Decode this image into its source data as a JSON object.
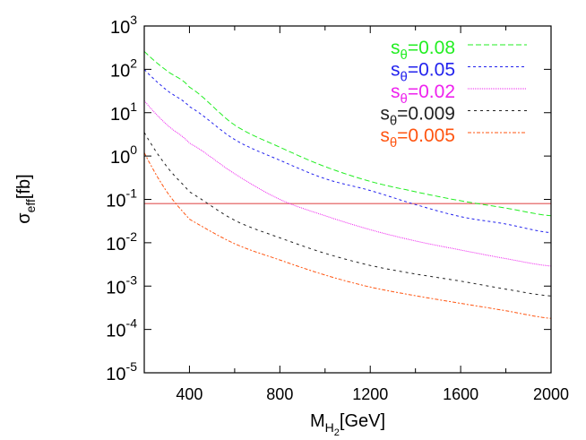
{
  "chart_data": {
    "type": "line",
    "xlabel": {
      "main": "M",
      "sub": "H",
      "subsub": "2",
      "unit": "[GeV]"
    },
    "ylabel": {
      "main": "σ",
      "sub": "eff",
      "unit": "[fb]"
    },
    "xlim": [
      200,
      2000
    ],
    "ylim": [
      1e-05,
      1000
    ],
    "yscale": "log",
    "grid": false,
    "legend_placement": "top-right",
    "x_ticks": [
      "400",
      "800",
      "1200",
      "1600",
      "2000"
    ],
    "x_tick_values": [
      400,
      800,
      1200,
      1600,
      2000
    ],
    "x_minor_ticks": [
      600,
      1000,
      1400,
      1800
    ],
    "y_ticks": [
      {
        "base": "10",
        "exp": "3",
        "value": 1000
      },
      {
        "base": "10",
        "exp": "2",
        "value": 100
      },
      {
        "base": "10",
        "exp": "1",
        "value": 10
      },
      {
        "base": "10",
        "exp": "0",
        "value": 1
      },
      {
        "base": "10",
        "exp": "-1",
        "value": 0.1
      },
      {
        "base": "10",
        "exp": "-2",
        "value": 0.01
      },
      {
        "base": "10",
        "exp": "-3",
        "value": 0.001
      },
      {
        "base": "10",
        "exp": "-4",
        "value": 0.0001
      },
      {
        "base": "10",
        "exp": "-5",
        "value": 1e-05
      }
    ],
    "x": [
      200,
      300,
      400,
      600,
      800,
      1000,
      1200,
      1400,
      1600,
      1800,
      2000
    ],
    "series": [
      {
        "name": "sθ=0.08",
        "label_base": "s",
        "label_sub": "θ",
        "label_rest": "=0.08",
        "color": "#22ee22",
        "dash": "6,3",
        "values": [
          260,
          93,
          39,
          5.2,
          1.6,
          0.57,
          0.26,
          0.15,
          0.093,
          0.063,
          0.042
        ]
      },
      {
        "name": "sθ=0.05",
        "label_base": "s",
        "label_sub": "θ",
        "label_rest": "=0.05",
        "color": "#2222ee",
        "dash": "3,3",
        "values": [
          100,
          33,
          13.8,
          2.4,
          0.8,
          0.3,
          0.16,
          0.076,
          0.04,
          0.027,
          0.017
        ]
      },
      {
        "name": "sθ=0.02",
        "label_base": "s",
        "label_sub": "θ",
        "label_rest": "=0.02",
        "color": "#ee22ee",
        "dash": "1,1",
        "values": [
          19,
          5.3,
          2.0,
          0.39,
          0.1,
          0.042,
          0.02,
          0.011,
          0.0068,
          0.0043,
          0.0029
        ]
      },
      {
        "name": "sθ=0.009",
        "label_base": "s",
        "label_sub": "θ",
        "label_rest": "=0.009",
        "color": "#222222",
        "dash": "3,4",
        "values": [
          3.5,
          0.57,
          0.15,
          0.033,
          0.013,
          0.0057,
          0.003,
          0.0019,
          0.0013,
          0.00085,
          0.00059
        ]
      },
      {
        "name": "sθ=0.005",
        "label_base": "s",
        "label_sub": "θ",
        "label_rest": "=0.005",
        "color": "#ff5511",
        "dash": "4,2,2,2",
        "values": [
          1.2,
          0.15,
          0.035,
          0.0095,
          0.004,
          0.0018,
          0.00095,
          0.0006,
          0.0004,
          0.00027,
          0.00018
        ]
      }
    ],
    "reference_line": {
      "y": 0.08,
      "color": "#e05555"
    }
  }
}
